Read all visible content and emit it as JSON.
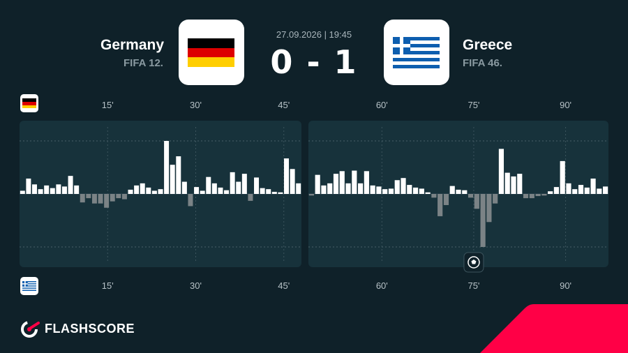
{
  "match": {
    "datetime": "27.09.2026 | 19:45",
    "score": "0 - 1",
    "home": {
      "name": "Germany",
      "rank": "FIFA 12.",
      "flag": "germany-flag-icon"
    },
    "away": {
      "name": "Greece",
      "rank": "FIFA 46.",
      "flag": "greece-flag-icon"
    }
  },
  "brand": {
    "name": "FLASHSCORE",
    "accent": "#ff0046"
  },
  "colors": {
    "background": "#0f2129",
    "panel": "#17323b",
    "home_bar": "#ffffff",
    "away_bar": "#7b8386"
  },
  "chart_data": {
    "type": "bar",
    "series": [
      {
        "name": "Germany",
        "side": "up"
      },
      {
        "name": "Greece",
        "side": "down"
      }
    ],
    "x_range": [
      0,
      97
    ],
    "first_half_range": [
      0,
      48
    ],
    "second_half_range": [
      48,
      97
    ],
    "tick_labels_top": [
      "15'",
      "30'",
      "45'",
      "60'",
      "75'",
      "90'"
    ],
    "tick_labels_bottom": [
      "15'",
      "30'",
      "45'",
      "60'",
      "75'",
      "90'"
    ],
    "tick_minutes": [
      15,
      30,
      45,
      60,
      75,
      90
    ],
    "ylim": [
      -1,
      1
    ],
    "first_half_values": [
      0.06,
      0.29,
      0.18,
      0.09,
      0.16,
      0.11,
      0.18,
      0.14,
      0.34,
      0.16,
      -0.16,
      -0.08,
      -0.18,
      -0.18,
      -0.26,
      -0.14,
      -0.08,
      -0.1,
      0.08,
      0.16,
      0.2,
      0.12,
      0.06,
      0.09,
      1.0,
      0.55,
      0.71,
      0.23,
      -0.23,
      0.13,
      0.06,
      0.32,
      0.2,
      0.12,
      0.07,
      0.41,
      0.23,
      0.38,
      -0.13,
      0.31,
      0.11,
      0.09,
      0.04,
      0.03,
      0.67,
      0.47,
      0.2
    ],
    "second_half_values": [
      -0.03,
      0.36,
      0.16,
      0.2,
      0.38,
      0.43,
      0.2,
      0.44,
      0.2,
      0.43,
      0.16,
      0.14,
      0.09,
      0.1,
      0.26,
      0.3,
      0.17,
      0.12,
      0.1,
      0.03,
      -0.07,
      -0.42,
      -0.21,
      0.15,
      0.08,
      0.07,
      -0.07,
      -0.28,
      -1.0,
      -0.53,
      -0.18,
      0.85,
      0.4,
      0.33,
      0.38,
      -0.08,
      -0.08,
      -0.04,
      -0.03,
      0.05,
      0.13,
      0.62,
      0.2,
      0.09,
      0.17,
      0.12,
      0.29,
      0.1,
      0.14
    ],
    "goals": [
      {
        "minute": 75,
        "team": "Greece",
        "icon": "soccer-ball-icon"
      }
    ],
    "grid": true
  }
}
